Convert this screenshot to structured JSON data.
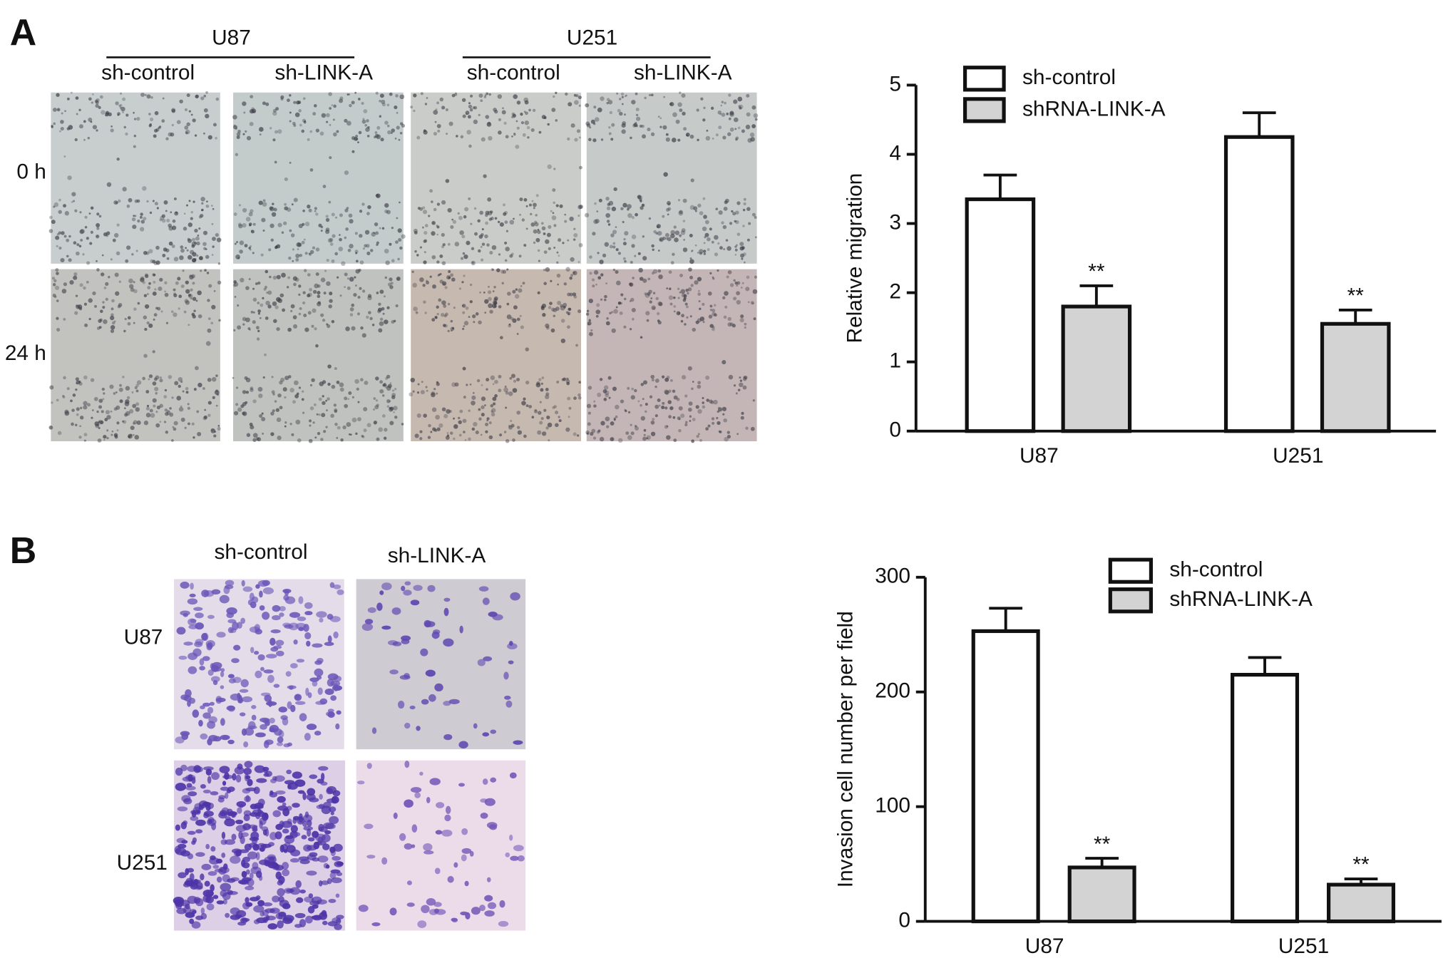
{
  "figure": {
    "panel_a": {
      "label": "A",
      "groups": [
        "U87",
        "U251"
      ],
      "columns": [
        "sh-control",
        "sh-LINK-A",
        "sh-control",
        "sh-LINK-A"
      ],
      "rows": [
        "0 h",
        "24 h"
      ]
    },
    "panel_b": {
      "label": "B",
      "columns": [
        "sh-control",
        "sh-LINK-A"
      ],
      "rows": [
        "U87",
        "U251"
      ]
    }
  },
  "chart_data": [
    {
      "type": "bar",
      "y_label": "Relative migration",
      "categories": [
        "U87",
        "U251"
      ],
      "series": [
        {
          "name": "sh-control",
          "color": "#ffffff",
          "values": [
            3.35,
            4.25
          ],
          "errors": [
            0.35,
            0.35
          ]
        },
        {
          "name": "shRNA-LINK-A",
          "color": "#d3d3d3",
          "values": [
            1.8,
            1.55
          ],
          "errors": [
            0.3,
            0.2
          ],
          "annotations": [
            "**",
            "**"
          ]
        }
      ],
      "ylim": [
        0,
        5
      ],
      "yticks": [
        0,
        1,
        2,
        3,
        4,
        5
      ],
      "legend": "upper left"
    },
    {
      "type": "bar",
      "y_label": "Invasion cell number per field",
      "categories": [
        "U87",
        "U251"
      ],
      "series": [
        {
          "name": "sh-control",
          "color": "#ffffff",
          "values": [
            253,
            215
          ],
          "errors": [
            20,
            15
          ]
        },
        {
          "name": "shRNA-LINK-A",
          "color": "#d3d3d3",
          "values": [
            47,
            32
          ],
          "errors": [
            8,
            5
          ],
          "annotations": [
            "**",
            "**"
          ]
        }
      ],
      "ylim": [
        0,
        300
      ],
      "yticks": [
        0,
        100,
        200,
        300
      ],
      "legend": "upper center"
    }
  ]
}
